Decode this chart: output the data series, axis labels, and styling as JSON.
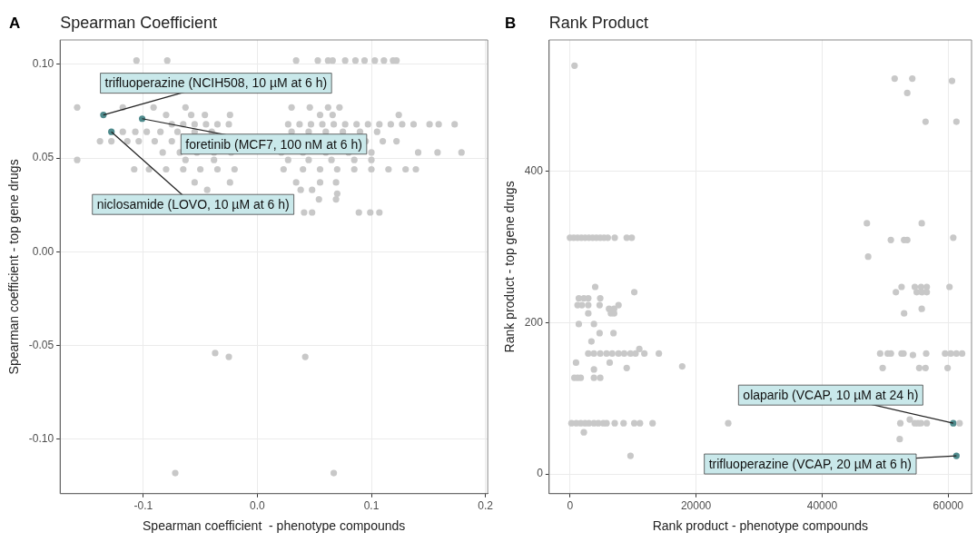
{
  "chart_data": [
    {
      "type": "scatter",
      "title": "Spearman Coefficient",
      "xlabel": "Spearman coefficient  - phenotype compounds",
      "ylabel": "Spearman coefficient - top gene drugs",
      "xlim": [
        -0.173,
        0.202
      ],
      "ylim": [
        -0.129,
        0.113
      ],
      "xticks": [
        -0.1,
        {
          "value": 0,
          "label": "0.0"
        },
        0.1,
        0.2
      ],
      "yticks": [
        {
          "value": -0.1,
          "label": "-0.10"
        },
        -0.05,
        {
          "value": 0,
          "label": "0.00"
        },
        0.05,
        {
          "value": 0.1,
          "label": "0.10"
        }
      ],
      "grid": true,
      "series": [
        {
          "color": "#c8c8c8",
          "x": [
            -0.106,
            -0.079,
            0.034,
            0.053,
            0.062,
            0.066,
            0.077,
            0.086,
            0.094,
            0.103,
            0.111,
            0.119,
            0.122,
            -0.158,
            -0.118,
            -0.091,
            -0.063,
            0.03,
            0.046,
            0.062,
            0.072,
            -0.08,
            -0.058,
            -0.046,
            -0.024,
            0.055,
            0.066,
            0.124,
            -0.075,
            -0.065,
            -0.055,
            -0.045,
            -0.035,
            -0.025,
            0.027,
            0.037,
            0.047,
            0.057,
            0.067,
            0.077,
            0.087,
            0.097,
            0.107,
            0.117,
            0.127,
            0.137,
            0.151,
            0.159,
            0.173,
            -0.118,
            -0.107,
            -0.097,
            -0.085,
            -0.07,
            -0.055,
            -0.04,
            0.03,
            0.045,
            0.06,
            0.075,
            0.09,
            0.105,
            -0.138,
            -0.128,
            -0.114,
            -0.104,
            -0.09,
            -0.075,
            0.095,
            0.11,
            0.122,
            -0.083,
            -0.068,
            -0.053,
            -0.038,
            -0.023,
            0.021,
            0.04,
            0.06,
            0.08,
            0.1,
            0.141,
            0.158,
            0.179,
            -0.158,
            -0.063,
            -0.038,
            0.027,
            0.045,
            0.065,
            0.085,
            0.1,
            -0.108,
            -0.095,
            -0.08,
            -0.065,
            -0.05,
            -0.035,
            -0.02,
            0.023,
            0.04,
            0.055,
            0.07,
            0.085,
            0.1,
            0.115,
            0.13,
            0.139,
            -0.055,
            -0.024,
            0.034,
            0.055,
            0.069,
            -0.044,
            0.038,
            0.048,
            0.07,
            0.054,
            0.069,
            0.041,
            0.048,
            0.089,
            0.099,
            0.107,
            -0.037,
            -0.025,
            0.042,
            -0.072,
            0.067
          ],
          "values": [
            0.102,
            0.102,
            0.102,
            0.102,
            0.102,
            0.102,
            0.102,
            0.102,
            0.102,
            0.102,
            0.102,
            0.102,
            0.102,
            0.077,
            0.077,
            0.077,
            0.077,
            0.077,
            0.077,
            0.077,
            0.077,
            0.073,
            0.073,
            0.073,
            0.073,
            0.073,
            0.073,
            0.073,
            0.068,
            0.068,
            0.068,
            0.068,
            0.068,
            0.068,
            0.068,
            0.068,
            0.068,
            0.068,
            0.068,
            0.068,
            0.068,
            0.068,
            0.068,
            0.068,
            0.068,
            0.068,
            0.068,
            0.068,
            0.068,
            0.064,
            0.064,
            0.064,
            0.064,
            0.064,
            0.064,
            0.064,
            0.064,
            0.064,
            0.064,
            0.064,
            0.064,
            0.064,
            0.059,
            0.059,
            0.059,
            0.059,
            0.059,
            0.059,
            0.059,
            0.059,
            0.059,
            0.053,
            0.053,
            0.053,
            0.053,
            0.053,
            0.053,
            0.053,
            0.053,
            0.053,
            0.053,
            0.053,
            0.053,
            0.053,
            0.049,
            0.049,
            0.049,
            0.049,
            0.049,
            0.049,
            0.049,
            0.049,
            0.044,
            0.044,
            0.044,
            0.044,
            0.044,
            0.044,
            0.044,
            0.044,
            0.044,
            0.044,
            0.044,
            0.044,
            0.044,
            0.044,
            0.044,
            0.044,
            0.037,
            0.037,
            0.037,
            0.037,
            0.037,
            0.033,
            0.033,
            0.033,
            0.031,
            0.028,
            0.028,
            0.021,
            0.021,
            0.021,
            0.021,
            0.021,
            -0.054,
            -0.056,
            -0.056,
            -0.118,
            -0.118
          ]
        },
        {
          "color": "#4e8a8c",
          "x": [
            -0.135,
            -0.101,
            -0.128
          ],
          "values": [
            0.073,
            0.071,
            0.064
          ]
        }
      ],
      "annotations": [
        "A",
        {
          "text": "trifluoperazine (NCIH508, 10 µM at 6 h)",
          "x": -0.135,
          "y": 0.073
        },
        {
          "text": "foretinib (MCF7, 100 nM at 6 h)",
          "x": -0.101,
          "y": 0.071
        },
        {
          "text": "niclosamide (LOVO, 10 µM at 6 h)",
          "x": -0.128,
          "y": 0.064
        }
      ]
    },
    {
      "type": "scatter",
      "title": "Rank Product",
      "xlabel": "Rank product - phenotype compounds",
      "ylabel": "Rank product - top gene drugs",
      "xlim": [
        -3300,
        63700
      ],
      "ylim": [
        -26,
        573
      ],
      "xticks": [
        0,
        20000,
        40000,
        60000
      ],
      "yticks": [
        0,
        200,
        400
      ],
      "grid": true,
      "series": [
        {
          "color": "#c8c8c8",
          "x": [
            720,
            51500,
            54300,
            60600,
            53500,
            56400,
            61300,
            47100,
            55800,
            0,
            600,
            1200,
            1800,
            2400,
            3000,
            3600,
            4200,
            4800,
            5400,
            6000,
            7100,
            9000,
            9800,
            60800,
            50900,
            53000,
            53500,
            47300,
            4000,
            52600,
            54700,
            55700,
            56600,
            60200,
            10200,
            51700,
            55000,
            55800,
            56600,
            1400,
            2200,
            2900,
            4800,
            1200,
            1900,
            2900,
            4700,
            7700,
            6200,
            7000,
            55800,
            2900,
            6500,
            7000,
            53000,
            1400,
            3800,
            4700,
            6900,
            3400,
            11000,
            2900,
            3800,
            4800,
            5800,
            6700,
            7700,
            8600,
            9600,
            10400,
            11800,
            14100,
            49200,
            50400,
            50900,
            52600,
            52900,
            56500,
            59500,
            60400,
            61300,
            62200,
            54400,
            960,
            6300,
            17800,
            9000,
            49600,
            55400,
            56400,
            59900,
            3800,
            700,
            1200,
            1700,
            3800,
            4800,
            53900,
            240,
            1000,
            1700,
            2400,
            3000,
            3800,
            4500,
            5300,
            5800,
            7100,
            8500,
            10200,
            11100,
            13100,
            25100,
            52400,
            54700,
            55200,
            55700,
            56600,
            61800,
            2200,
            52300,
            9600
          ],
          "values": [
            539,
            522,
            522,
            519,
            503,
            465,
            465,
            331,
            331,
            312,
            312,
            312,
            312,
            312,
            312,
            312,
            312,
            312,
            312,
            312,
            312,
            312,
            312,
            312,
            309,
            309,
            309,
            287,
            247,
            247,
            247,
            247,
            247,
            247,
            240,
            240,
            240,
            240,
            240,
            232,
            232,
            232,
            232,
            223,
            223,
            223,
            223,
            223,
            218,
            218,
            218,
            212,
            212,
            212,
            212,
            198,
            198,
            186,
            186,
            175,
            165,
            159,
            159,
            159,
            159,
            159,
            159,
            159,
            159,
            159,
            159,
            159,
            159,
            159,
            159,
            159,
            159,
            159,
            159,
            159,
            159,
            159,
            157,
            147,
            147,
            142,
            140,
            140,
            140,
            140,
            140,
            138,
            127,
            127,
            127,
            127,
            127,
            72,
            67,
            67,
            67,
            67,
            67,
            67,
            67,
            67,
            67,
            67,
            67,
            67,
            67,
            67,
            67,
            67,
            67,
            67,
            67,
            67,
            67,
            55,
            46,
            24
          ]
        },
        {
          "color": "#4e8a8c",
          "x": [
            60800,
            61300
          ],
          "values": [
            67,
            24
          ]
        }
      ],
      "annotations": [
        "B",
        {
          "text": "olaparib (VCAP, 10 µM at 24 h)",
          "x": 60800,
          "y": 67
        },
        {
          "text": "trifluoperazine (VCAP, 20 µM at 6 h)",
          "x": 61300,
          "y": 24
        }
      ]
    }
  ]
}
